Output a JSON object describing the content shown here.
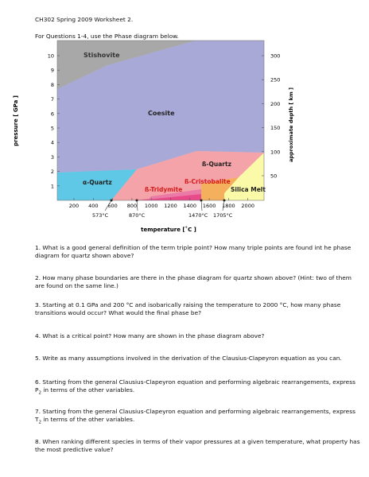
{
  "header": {
    "title": "CH302 Spring 2009 Worksheet 2.",
    "instruction": "For Questions 1-4, use the Phase diagram below."
  },
  "diagram": {
    "y_axis_label": "pressure [ GPa ]",
    "y_ticks": [
      "10",
      "9",
      "8",
      "7",
      "6",
      "5",
      "4",
      "3",
      "2",
      "1"
    ],
    "right_axis_label": "approximate depth [ km ]",
    "right_ticks": [
      "300",
      "250",
      "200",
      "150",
      "100",
      "50"
    ],
    "x_ticks": [
      "200",
      "400",
      "600",
      "800",
      "1000",
      "1200",
      "1400",
      "1600",
      "1800",
      "2000"
    ],
    "x_axis_label": "temperature [˚C ]",
    "transition_labels": [
      "573°C",
      "870°C",
      "1470°C",
      "1705°C"
    ],
    "phases": {
      "stishovite": "Stishovite",
      "coesite": "Coesite",
      "beta_quartz": "ß-Quartz",
      "alpha_quartz": "α-Quartz",
      "beta_cristobalite": "ß-Cristobalite",
      "beta_tridymite": "ß-Tridymite",
      "silica_melt": "Silica Melt"
    },
    "colors": {
      "stishovite": "#a8a8a8",
      "coesite": "#a9a9d8",
      "alpha_quartz": "#5ec8e6",
      "beta_quartz": "#f4a3a8",
      "beta_tridymite": "#e94a8a",
      "beta_cristobalite": "#f5b05e",
      "silica_melt": "#fafaa8",
      "label_red": "#d61a1a"
    }
  },
  "questions": [
    {
      "number": "1.",
      "text": "What is a good general definition of the term triple point? How many triple points are found int he phase diagram for quartz shown above?"
    },
    {
      "number": "2.",
      "text": "How many phase boundaries are there in the phase diagram for quartz shown above? (Hint: two of them are found on the same line.)"
    },
    {
      "number": "3.",
      "text": "Starting at 0.1 GPa and 200 °C and isobarically raising the temperature to 2000 °C, how many phase transitions would occur? What would the final phase be?"
    },
    {
      "number": "4.",
      "text": "What is a critical point? How many are shown in the phase diagram above?"
    },
    {
      "number": "5.",
      "text": "Write as many assumptions involved in the derivation of the Clausius-Clapeyron equation as you can."
    },
    {
      "number": "6.",
      "text_before": "Starting from the general Clausius-Clapeyron equation and performing algebraic rearrangements, express P",
      "subscript": "2",
      "text_after": " in terms of the other variables."
    },
    {
      "number": "7.",
      "text_before": "Starting from the general Clausius-Clapeyron equation and performing algebraic rearrangements, express T",
      "subscript": "2",
      "text_after": " in terms of the other variables."
    },
    {
      "number": "8.",
      "text": "When ranking different species in terms of their vapor pressures at a given temperature, what property has the most predictive value?"
    }
  ]
}
